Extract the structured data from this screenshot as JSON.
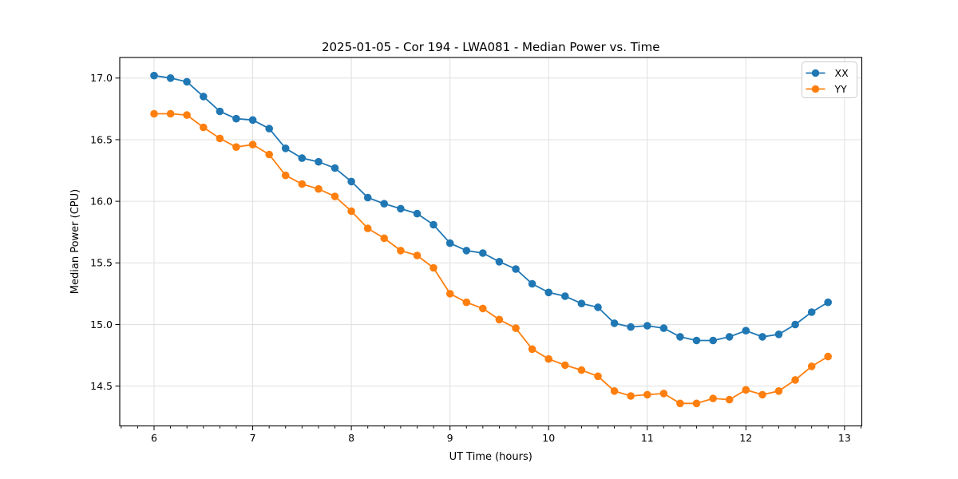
{
  "colors": {
    "background": "#ffffff",
    "grid": "#e0e0e0",
    "spine": "#000000",
    "text": "#000000",
    "legend_border": "#cccccc",
    "series_xx": "#1f77b4",
    "series_yy": "#ff7f0e"
  },
  "chart_data": {
    "type": "line",
    "title": "2025-01-05 - Cor 194 - LWA081 - Median Power vs. Time",
    "xlabel": "UT Time (hours)",
    "ylabel": "Median Power (CPU)",
    "grid": true,
    "legend_position": "upper right",
    "xlim": [
      5.652,
      13.175
    ],
    "ylim": [
      14.177,
      17.167
    ],
    "xticks": [
      6,
      7,
      8,
      9,
      10,
      11,
      12,
      13
    ],
    "xtick_labels": [
      "6",
      "7",
      "8",
      "9",
      "10",
      "11",
      "12",
      "13"
    ],
    "x_minor_tick_step": 0.166667,
    "yticks": [
      14.5,
      15.0,
      15.5,
      16.0,
      16.5,
      17.0
    ],
    "ytick_labels": [
      "14.5",
      "15.0",
      "15.5",
      "16.0",
      "16.5",
      "17.0"
    ],
    "x": [
      6.0,
      6.167,
      6.333,
      6.5,
      6.667,
      6.833,
      7.0,
      7.167,
      7.333,
      7.5,
      7.667,
      7.833,
      8.0,
      8.167,
      8.333,
      8.5,
      8.667,
      8.833,
      9.0,
      9.167,
      9.333,
      9.5,
      9.667,
      9.833,
      10.0,
      10.167,
      10.333,
      10.5,
      10.667,
      10.833,
      11.0,
      11.167,
      11.333,
      11.5,
      11.667,
      11.833,
      12.0,
      12.167,
      12.333,
      12.5,
      12.667,
      12.833
    ],
    "series": [
      {
        "name": "XX",
        "color": "#1f77b4",
        "values": [
          17.02,
          17.0,
          16.97,
          16.85,
          16.73,
          16.67,
          16.66,
          16.59,
          16.43,
          16.35,
          16.32,
          16.27,
          16.16,
          16.03,
          15.98,
          15.94,
          15.9,
          15.81,
          15.66,
          15.6,
          15.58,
          15.51,
          15.45,
          15.33,
          15.26,
          15.23,
          15.17,
          15.14,
          15.01,
          14.98,
          14.99,
          14.97,
          14.9,
          14.87,
          14.87,
          14.9,
          14.95,
          14.9,
          14.92,
          15.0,
          15.1,
          15.18
        ]
      },
      {
        "name": "YY",
        "color": "#ff7f0e",
        "values": [
          16.71,
          16.71,
          16.7,
          16.6,
          16.51,
          16.44,
          16.46,
          16.38,
          16.21,
          16.14,
          16.1,
          16.04,
          15.92,
          15.78,
          15.7,
          15.6,
          15.56,
          15.46,
          15.25,
          15.18,
          15.13,
          15.04,
          14.97,
          14.8,
          14.72,
          14.67,
          14.63,
          14.58,
          14.46,
          14.42,
          14.43,
          14.44,
          14.36,
          14.36,
          14.4,
          14.39,
          14.47,
          14.43,
          14.46,
          14.55,
          14.66,
          14.74
        ]
      }
    ]
  }
}
